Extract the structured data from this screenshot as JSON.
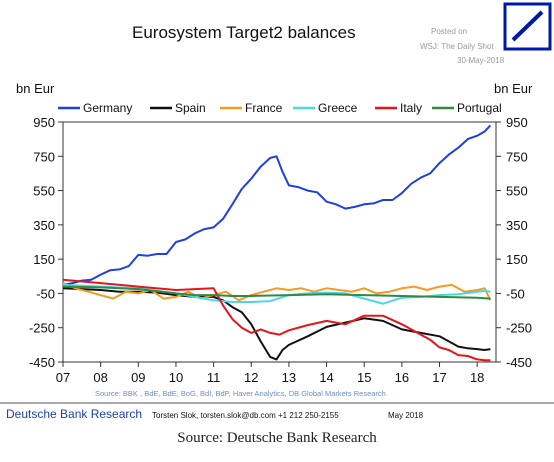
{
  "posted": {
    "line1": "Posted on",
    "line2": "WSJ: The Daily Shot",
    "line3": "30-May-2018"
  },
  "caption": "Source: Deutsche Bank Research",
  "footer": {
    "brand": "Deutsche Bank Research",
    "contact": "Torsten Slok, torsten.slok@db.com  +1 212 250-2155",
    "date": "May 2018"
  },
  "logo": {
    "name": "deutsche-bank-logo",
    "color": "#0018a8"
  },
  "chart_data": {
    "type": "line",
    "title": "Eurosystem Target2 balances",
    "ylabel_left": "bn Eur",
    "ylabel_right": "bn Eur",
    "source": "Source: BBK , BdE, BdE, BoG, BdI, BdP, Haver Analytics, DB Global Markets Research",
    "ylim": [
      -450,
      950
    ],
    "yticks": [
      950,
      750,
      550,
      350,
      150,
      -50,
      -250,
      -450
    ],
    "xlim": [
      2007.0,
      2018.5
    ],
    "xticks": [
      {
        "value": 2007,
        "label": "07"
      },
      {
        "value": 2008,
        "label": "08"
      },
      {
        "value": 2009,
        "label": "09"
      },
      {
        "value": 2010,
        "label": "10"
      },
      {
        "value": 2011,
        "label": "11"
      },
      {
        "value": 2012,
        "label": "12"
      },
      {
        "value": 2013,
        "label": "13"
      },
      {
        "value": 2014,
        "label": "14"
      },
      {
        "value": 2015,
        "label": "15"
      },
      {
        "value": 2016,
        "label": "16"
      },
      {
        "value": 2017,
        "label": "17"
      },
      {
        "value": 2018,
        "label": "18"
      }
    ],
    "grid": false,
    "legend_position": "top",
    "series": [
      {
        "name": "Germany",
        "color": "#1f3fe0",
        "x": [
          2007.0,
          2007.25,
          2007.5,
          2007.75,
          2008.0,
          2008.25,
          2008.5,
          2008.75,
          2009.0,
          2009.25,
          2009.5,
          2009.75,
          2010.0,
          2010.25,
          2010.5,
          2010.75,
          2011.0,
          2011.25,
          2011.5,
          2011.75,
          2012.0,
          2012.25,
          2012.5,
          2012.67,
          2012.83,
          2013.0,
          2013.25,
          2013.5,
          2013.75,
          2014.0,
          2014.25,
          2014.5,
          2014.75,
          2015.0,
          2015.25,
          2015.5,
          2015.75,
          2016.0,
          2016.25,
          2016.5,
          2016.75,
          2017.0,
          2017.25,
          2017.5,
          2017.75,
          2018.0,
          2018.2,
          2018.35
        ],
        "y": [
          0,
          10,
          25,
          30,
          60,
          85,
          90,
          110,
          175,
          170,
          180,
          180,
          250,
          265,
          300,
          325,
          335,
          385,
          470,
          560,
          620,
          690,
          740,
          750,
          660,
          580,
          570,
          550,
          540,
          485,
          470,
          445,
          455,
          470,
          475,
          495,
          495,
          535,
          590,
          625,
          650,
          710,
          760,
          800,
          850,
          870,
          895,
          930
        ]
      },
      {
        "name": "Spain",
        "color": "#111111",
        "x": [
          2007.0,
          2007.5,
          2008.0,
          2008.5,
          2009.0,
          2009.5,
          2010.0,
          2010.5,
          2011.0,
          2011.25,
          2011.5,
          2011.75,
          2012.0,
          2012.25,
          2012.5,
          2012.67,
          2012.83,
          2013.0,
          2013.5,
          2014.0,
          2014.5,
          2015.0,
          2015.5,
          2016.0,
          2016.5,
          2017.0,
          2017.25,
          2017.5,
          2017.75,
          2018.0,
          2018.2,
          2018.35
        ],
        "y": [
          -20,
          -25,
          -30,
          -40,
          -40,
          -45,
          -60,
          -70,
          -70,
          -90,
          -130,
          -160,
          -230,
          -330,
          -420,
          -435,
          -380,
          -350,
          -300,
          -245,
          -220,
          -195,
          -210,
          -260,
          -280,
          -300,
          -330,
          -360,
          -370,
          -375,
          -380,
          -375
        ]
      },
      {
        "name": "France",
        "color": "#f59a23",
        "x": [
          2007.0,
          2007.33,
          2007.67,
          2008.0,
          2008.33,
          2008.67,
          2009.0,
          2009.33,
          2009.67,
          2010.0,
          2010.33,
          2010.67,
          2011.0,
          2011.33,
          2011.67,
          2012.0,
          2012.33,
          2012.67,
          2013.0,
          2013.33,
          2013.67,
          2014.0,
          2014.33,
          2014.67,
          2015.0,
          2015.33,
          2015.67,
          2016.0,
          2016.33,
          2016.67,
          2017.0,
          2017.33,
          2017.67,
          2018.0,
          2018.2,
          2018.35
        ],
        "y": [
          10,
          -20,
          -40,
          -60,
          -80,
          -40,
          -50,
          -30,
          -80,
          -70,
          -40,
          -80,
          -60,
          -40,
          -90,
          -60,
          -40,
          -20,
          -30,
          -20,
          -40,
          -20,
          -30,
          -40,
          -20,
          -50,
          -40,
          -20,
          -10,
          -30,
          -10,
          0,
          -40,
          -30,
          -20,
          -90
        ]
      },
      {
        "name": "Greece",
        "color": "#4fd4e8",
        "x": [
          2007.0,
          2008.0,
          2009.0,
          2010.0,
          2010.5,
          2011.0,
          2011.5,
          2012.0,
          2012.5,
          2013.0,
          2013.5,
          2014.0,
          2014.5,
          2015.0,
          2015.5,
          2016.0,
          2016.5,
          2017.0,
          2017.5,
          2018.0,
          2018.2,
          2018.35
        ],
        "y": [
          0,
          -10,
          -20,
          -50,
          -70,
          -90,
          -100,
          -100,
          -95,
          -60,
          -50,
          -45,
          -50,
          -80,
          -110,
          -75,
          -70,
          -60,
          -55,
          -40,
          -35,
          -40
        ]
      },
      {
        "name": "Italy",
        "color": "#e8141c",
        "x": [
          2007.0,
          2008.0,
          2009.0,
          2010.0,
          2011.0,
          2011.25,
          2011.5,
          2011.75,
          2012.0,
          2012.25,
          2012.5,
          2012.75,
          2013.0,
          2013.5,
          2014.0,
          2014.5,
          2015.0,
          2015.5,
          2016.0,
          2016.25,
          2016.5,
          2016.75,
          2017.0,
          2017.25,
          2017.5,
          2017.75,
          2018.0,
          2018.2,
          2018.35
        ],
        "y": [
          30,
          10,
          -10,
          -30,
          -20,
          -120,
          -200,
          -250,
          -280,
          -260,
          -280,
          -290,
          -265,
          -235,
          -210,
          -230,
          -180,
          -180,
          -230,
          -260,
          -290,
          -320,
          -365,
          -380,
          -410,
          -415,
          -435,
          -440,
          -440
        ]
      },
      {
        "name": "Portugal",
        "color": "#2e8b45",
        "x": [
          2007.0,
          2008.0,
          2009.0,
          2010.0,
          2010.5,
          2011.0,
          2011.5,
          2012.0,
          2013.0,
          2014.0,
          2015.0,
          2016.0,
          2017.0,
          2018.0,
          2018.35
        ],
        "y": [
          -10,
          -15,
          -25,
          -50,
          -60,
          -60,
          -65,
          -65,
          -60,
          -55,
          -60,
          -65,
          -70,
          -75,
          -80
        ]
      }
    ]
  }
}
